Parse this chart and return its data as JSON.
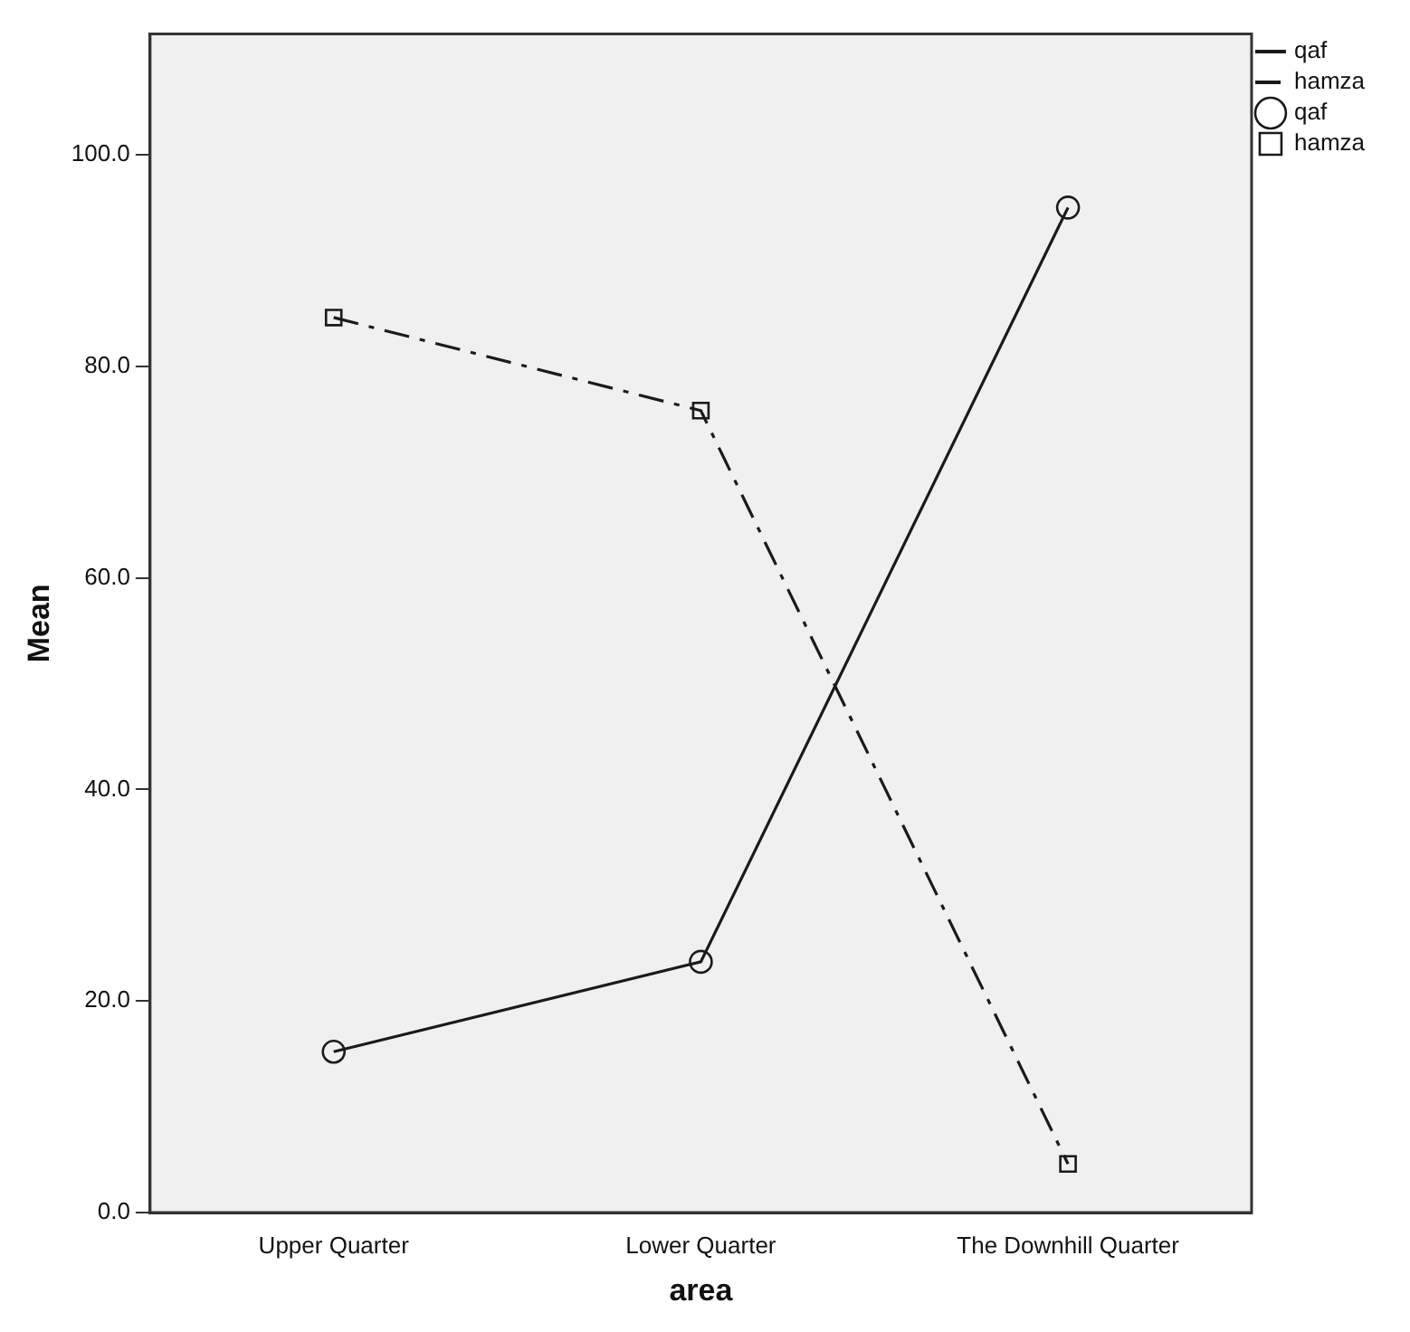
{
  "chart_data": {
    "type": "line",
    "xlabel": "area",
    "ylabel": "Mean",
    "categories": [
      "Upper Quarter",
      "Lower Quarter",
      "The Downhill Quarter"
    ],
    "series": [
      {
        "name": "qaf",
        "color": "#1a1a1a",
        "values": [
          15.2,
          23.7,
          95.0
        ],
        "marker": "circle",
        "line_style": "solid"
      },
      {
        "name": "hamza",
        "color": "#1a1a1a",
        "values": [
          84.6,
          75.8,
          4.6
        ],
        "marker": "square",
        "line_style": "dashed"
      }
    ],
    "ylim": [
      0,
      111.4
    ],
    "yticks": [
      {
        "value": 0,
        "label": "0.0"
      },
      {
        "value": 20,
        "label": "20.0"
      },
      {
        "value": 40,
        "label": "40.0"
      },
      {
        "value": 60,
        "label": "60.0"
      },
      {
        "value": 80,
        "label": "80.0"
      },
      {
        "value": 100,
        "label": "100.0"
      }
    ],
    "grid": false,
    "legend": "top right"
  }
}
